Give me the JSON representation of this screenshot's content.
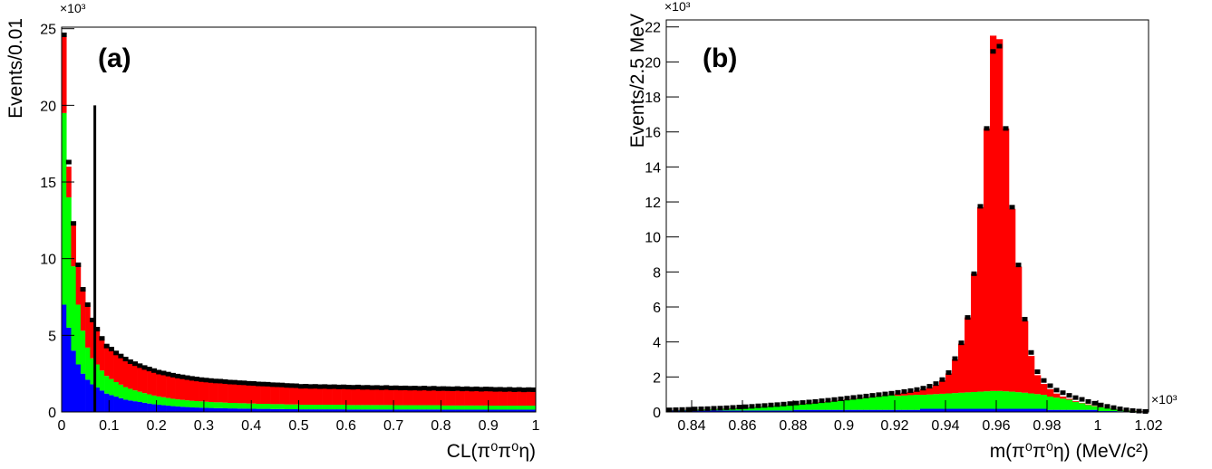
{
  "chart_data": [
    {
      "type": "histogram",
      "panel_label": "(a)",
      "y_multiplier": "×10³",
      "x_label": "CL(π⁰π⁰η)",
      "y_label": "Events/0.01",
      "xlim": [
        0,
        1
      ],
      "ylim": [
        0,
        25.1
      ],
      "xticks": [
        0,
        0.1,
        0.2,
        0.3,
        0.4,
        0.5,
        0.6,
        0.7,
        0.8,
        0.9,
        1
      ],
      "yticks": [
        0,
        5,
        10,
        15,
        20,
        25
      ],
      "grid": false,
      "bins": [
        0,
        0.01,
        0.02,
        0.03,
        0.04,
        0.05,
        0.06,
        0.07,
        0.08,
        0.09,
        0.1,
        0.11,
        0.12,
        0.13,
        0.14,
        0.15,
        0.16,
        0.17,
        0.18,
        0.19,
        0.2,
        0.21,
        0.22,
        0.23,
        0.24,
        0.25,
        0.26,
        0.27,
        0.28,
        0.29,
        0.3,
        0.31,
        0.32,
        0.33,
        0.34,
        0.35,
        0.36,
        0.37,
        0.38,
        0.39,
        0.4,
        0.41,
        0.42,
        0.43,
        0.44,
        0.45,
        0.46,
        0.47,
        0.48,
        0.49,
        0.5,
        0.51,
        0.52,
        0.53,
        0.54,
        0.55,
        0.56,
        0.57,
        0.58,
        0.59,
        0.6,
        0.61,
        0.62,
        0.63,
        0.64,
        0.65,
        0.66,
        0.67,
        0.68,
        0.69,
        0.7,
        0.71,
        0.72,
        0.73,
        0.74,
        0.75,
        0.76,
        0.77,
        0.78,
        0.79,
        0.8,
        0.81,
        0.82,
        0.83,
        0.84,
        0.85,
        0.86,
        0.87,
        0.88,
        0.89,
        0.9,
        0.91,
        0.92,
        0.93,
        0.94,
        0.95,
        0.96,
        0.97,
        0.98,
        0.99,
        1
      ],
      "series": [
        {
          "color": "#0000ff",
          "values": [
            7.0,
            5.5,
            4.0,
            3.1,
            2.5,
            2.1,
            1.8,
            1.6,
            1.4,
            1.2,
            1.1,
            1.0,
            0.9,
            0.8,
            0.75,
            0.7,
            0.65,
            0.6,
            0.55,
            0.5,
            0.47,
            0.44,
            0.41,
            0.38,
            0.36,
            0.34,
            0.32,
            0.3,
            0.29,
            0.28,
            0.27,
            0.26,
            0.25,
            0.25,
            0.24,
            0.23,
            0.23,
            0.22,
            0.22,
            0.21,
            0.21,
            0.2,
            0.2,
            0.2,
            0.19,
            0.19,
            0.19,
            0.18,
            0.18,
            0.18,
            0.17,
            0.17,
            0.17,
            0.17,
            0.17,
            0.17,
            0.17,
            0.17,
            0.17,
            0.17,
            0.16,
            0.16,
            0.16,
            0.16,
            0.16,
            0.16,
            0.16,
            0.16,
            0.16,
            0.16,
            0.16,
            0.16,
            0.16,
            0.16,
            0.16,
            0.16,
            0.16,
            0.16,
            0.16,
            0.16,
            0.15,
            0.15,
            0.15,
            0.15,
            0.15,
            0.15,
            0.15,
            0.15,
            0.15,
            0.15,
            0.15,
            0.15,
            0.15,
            0.15,
            0.15,
            0.15,
            0.15,
            0.15,
            0.15,
            0.15
          ]
        },
        {
          "color": "#00ff00",
          "values": [
            12.5,
            8.5,
            5.5,
            3.9,
            2.8,
            2.1,
            1.7,
            1.5,
            1.3,
            1.15,
            1.05,
            0.95,
            0.88,
            0.82,
            0.76,
            0.71,
            0.67,
            0.63,
            0.6,
            0.57,
            0.54,
            0.52,
            0.5,
            0.48,
            0.46,
            0.45,
            0.44,
            0.43,
            0.42,
            0.41,
            0.4,
            0.39,
            0.38,
            0.38,
            0.37,
            0.36,
            0.36,
            0.35,
            0.35,
            0.34,
            0.34,
            0.33,
            0.33,
            0.33,
            0.32,
            0.32,
            0.32,
            0.31,
            0.31,
            0.31,
            0.3,
            0.3,
            0.3,
            0.3,
            0.3,
            0.3,
            0.3,
            0.3,
            0.3,
            0.3,
            0.29,
            0.29,
            0.29,
            0.29,
            0.29,
            0.29,
            0.29,
            0.29,
            0.29,
            0.29,
            0.28,
            0.28,
            0.28,
            0.28,
            0.28,
            0.28,
            0.28,
            0.28,
            0.28,
            0.28,
            0.27,
            0.27,
            0.27,
            0.27,
            0.27,
            0.27,
            0.27,
            0.27,
            0.27,
            0.27,
            0.26,
            0.26,
            0.26,
            0.26,
            0.26,
            0.26,
            0.26,
            0.26,
            0.26,
            0.26
          ]
        },
        {
          "color": "#ff0000",
          "values": [
            5.0,
            2.0,
            2.7,
            2.6,
            2.7,
            2.8,
            2.5,
            2.3,
            2.1,
            1.95,
            1.95,
            1.9,
            1.85,
            1.8,
            1.76,
            1.72,
            1.69,
            1.66,
            1.63,
            1.6,
            1.58,
            1.56,
            1.54,
            1.52,
            1.5,
            1.48,
            1.46,
            1.44,
            1.42,
            1.4,
            1.39,
            1.38,
            1.37,
            1.36,
            1.35,
            1.34,
            1.33,
            1.32,
            1.31,
            1.3,
            1.29,
            1.28,
            1.27,
            1.26,
            1.25,
            1.24,
            1.23,
            1.22,
            1.21,
            1.2,
            1.18,
            1.18,
            1.18,
            1.18,
            1.18,
            1.18,
            1.18,
            1.18,
            1.18,
            1.18,
            1.15,
            1.15,
            1.15,
            1.15,
            1.15,
            1.15,
            1.15,
            1.15,
            1.15,
            1.15,
            1.12,
            1.12,
            1.12,
            1.12,
            1.12,
            1.12,
            1.12,
            1.12,
            1.12,
            1.12,
            1.09,
            1.09,
            1.09,
            1.09,
            1.09,
            1.09,
            1.09,
            1.09,
            1.09,
            1.09,
            1.06,
            1.06,
            1.06,
            1.06,
            1.06,
            1.06,
            1.06,
            1.06,
            1.06,
            1.06
          ]
        }
      ],
      "points": {
        "color": "#000000",
        "values": [
          24.6,
          16.3,
          12.3,
          9.6,
          8.0,
          7.0,
          6.0,
          5.4,
          4.8,
          4.3,
          4.1,
          3.85,
          3.65,
          3.45,
          3.28,
          3.15,
          3.02,
          2.9,
          2.8,
          2.7,
          2.6,
          2.54,
          2.47,
          2.4,
          2.34,
          2.29,
          2.24,
          2.19,
          2.15,
          2.11,
          2.08,
          2.05,
          2.02,
          2.01,
          1.98,
          1.95,
          1.94,
          1.91,
          1.9,
          1.87,
          1.86,
          1.83,
          1.82,
          1.81,
          1.78,
          1.77,
          1.76,
          1.73,
          1.72,
          1.71,
          1.67,
          1.68,
          1.66,
          1.67,
          1.65,
          1.66,
          1.64,
          1.65,
          1.63,
          1.64,
          1.62,
          1.61,
          1.63,
          1.6,
          1.61,
          1.59,
          1.6,
          1.58,
          1.6,
          1.57,
          1.58,
          1.56,
          1.57,
          1.55,
          1.56,
          1.54,
          1.56,
          1.53,
          1.55,
          1.52,
          1.53,
          1.52,
          1.51,
          1.53,
          1.5,
          1.52,
          1.49,
          1.51,
          1.48,
          1.5,
          1.49,
          1.47,
          1.48,
          1.46,
          1.48,
          1.45,
          1.47,
          1.44,
          1.46,
          1.45
        ]
      },
      "cut_line": {
        "x": 0.07,
        "y": 20,
        "color": "#000000"
      }
    },
    {
      "type": "histogram",
      "panel_label": "(b)",
      "y_multiplier": "×10³",
      "x_multiplier": "×10³",
      "x_label": "m(π⁰π⁰η) (MeV/c²)",
      "y_label": "Events/2.5 MeV",
      "xlim": [
        0.83,
        1.02
      ],
      "ylim": [
        0,
        22.4
      ],
      "xticks": [
        0.84,
        0.86,
        0.88,
        0.9,
        0.92,
        0.94,
        0.96,
        0.98,
        1,
        1.02
      ],
      "yticks": [
        0,
        2,
        4,
        6,
        8,
        10,
        12,
        14,
        16,
        18,
        20,
        22
      ],
      "grid": false,
      "bins": [
        0.83,
        0.8325,
        0.835,
        0.8375,
        0.84,
        0.8425,
        0.845,
        0.8475,
        0.85,
        0.8525,
        0.855,
        0.8575,
        0.86,
        0.8625,
        0.865,
        0.8675,
        0.87,
        0.8725,
        0.875,
        0.8775,
        0.88,
        0.8825,
        0.885,
        0.8875,
        0.89,
        0.8925,
        0.895,
        0.8975,
        0.9,
        0.9025,
        0.905,
        0.9075,
        0.91,
        0.9125,
        0.915,
        0.9175,
        0.92,
        0.9225,
        0.925,
        0.9275,
        0.93,
        0.9325,
        0.935,
        0.9375,
        0.94,
        0.9425,
        0.945,
        0.9475,
        0.95,
        0.9525,
        0.955,
        0.9575,
        0.96,
        0.9625,
        0.965,
        0.9675,
        0.97,
        0.9725,
        0.975,
        0.9775,
        0.98,
        0.9825,
        0.985,
        0.9875,
        0.99,
        0.9925,
        0.995,
        0.9975,
        1,
        1.0025,
        1.005,
        1.0075,
        1.01,
        1.0125,
        1.015,
        1.0175,
        1.02
      ],
      "series": [
        {
          "color": "#0000ff",
          "values": [
            0.08,
            0.08,
            0.08,
            0.08,
            0.08,
            0.08,
            0.08,
            0.08,
            0.08,
            0.08,
            0.08,
            0.08,
            0.08,
            0.08,
            0.08,
            0.08,
            0.08,
            0.08,
            0.08,
            0.08,
            0.12,
            0.12,
            0.12,
            0.12,
            0.12,
            0.12,
            0.12,
            0.12,
            0.12,
            0.12,
            0.12,
            0.12,
            0.12,
            0.12,
            0.12,
            0.12,
            0.12,
            0.12,
            0.12,
            0.12,
            0.18,
            0.18,
            0.18,
            0.18,
            0.18,
            0.18,
            0.18,
            0.18,
            0.18,
            0.18,
            0.18,
            0.18,
            0.18,
            0.18,
            0.18,
            0.18,
            0.18,
            0.18,
            0.18,
            0.18,
            0.12,
            0.12,
            0.12,
            0.12,
            0.12,
            0.12,
            0.12,
            0.12,
            0.05,
            0.05,
            0.05,
            0.04,
            0.03,
            0.02,
            0.015,
            0.01
          ]
        },
        {
          "color": "#00ff00",
          "values": [
            0.01,
            0.02,
            0.03,
            0.04,
            0.05,
            0.06,
            0.07,
            0.09,
            0.1,
            0.11,
            0.13,
            0.15,
            0.17,
            0.19,
            0.21,
            0.23,
            0.26,
            0.28,
            0.31,
            0.33,
            0.3,
            0.33,
            0.36,
            0.39,
            0.42,
            0.45,
            0.49,
            0.53,
            0.57,
            0.61,
            0.65,
            0.69,
            0.73,
            0.77,
            0.81,
            0.85,
            0.8,
            0.82,
            0.84,
            0.86,
            0.8,
            0.82,
            0.84,
            0.86,
            0.88,
            0.9,
            0.92,
            0.94,
            0.96,
            0.98,
            1.0,
            1.02,
            1.02,
            1.0,
            0.98,
            0.95,
            0.92,
            0.88,
            0.84,
            0.8,
            0.76,
            0.7,
            0.64,
            0.58,
            0.46,
            0.38,
            0.28,
            0.21,
            0.22,
            0.16,
            0.11,
            0.08,
            0.05,
            0.03,
            0.015,
            0.0
          ]
        },
        {
          "color": "#ff0000",
          "values": [
            0.01,
            0.01,
            0.01,
            0.01,
            0.01,
            0.01,
            0.01,
            0.01,
            0.01,
            0.01,
            0.01,
            0.01,
            0.01,
            0.01,
            0.01,
            0.01,
            0.01,
            0.01,
            0.01,
            0.01,
            0.03,
            0.03,
            0.03,
            0.03,
            0.03,
            0.03,
            0.03,
            0.03,
            0.03,
            0.03,
            0.03,
            0.03,
            0.03,
            0.03,
            0.03,
            0.03,
            0.13,
            0.16,
            0.19,
            0.24,
            0.32,
            0.4,
            0.53,
            0.76,
            1.14,
            1.92,
            2.8,
            4.28,
            6.76,
            10.54,
            15.02,
            20.3,
            20.1,
            15.02,
            10.44,
            7.17,
            4.1,
            2.14,
            1.08,
            0.62,
            0.42,
            0.23,
            0.12,
            0.05,
            0.04,
            0.02,
            0.03,
            0.02,
            0.01,
            0.01,
            0.01,
            0.01,
            0.01,
            0.01,
            0.01,
            0.01
          ]
        }
      ],
      "points": {
        "color": "#000000",
        "values": [
          0.12,
          0.13,
          0.14,
          0.15,
          0.17,
          0.18,
          0.19,
          0.21,
          0.22,
          0.24,
          0.26,
          0.28,
          0.3,
          0.32,
          0.35,
          0.37,
          0.4,
          0.42,
          0.45,
          0.48,
          0.51,
          0.54,
          0.57,
          0.6,
          0.64,
          0.67,
          0.71,
          0.75,
          0.79,
          0.83,
          0.87,
          0.91,
          0.95,
          0.99,
          1.03,
          1.07,
          1.12,
          1.17,
          1.22,
          1.28,
          1.36,
          1.47,
          1.62,
          1.85,
          2.25,
          3.05,
          3.95,
          5.4,
          7.9,
          11.75,
          16.2,
          20.6,
          20.9,
          16.2,
          11.7,
          8.4,
          5.3,
          3.4,
          2.3,
          1.8,
          1.5,
          1.25,
          1.1,
          0.95,
          0.82,
          0.72,
          0.6,
          0.5,
          0.4,
          0.32,
          0.25,
          0.18,
          0.12,
          0.08,
          0.05,
          0.03
        ]
      }
    }
  ]
}
